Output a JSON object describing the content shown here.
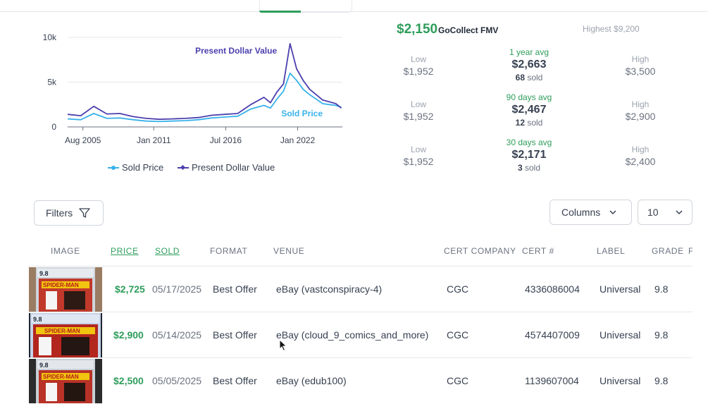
{
  "chart_data": {
    "type": "line",
    "x_tick_labels": [
      "Aug 2005",
      "Jan 2011",
      "Jul 2016",
      "Jan 2022"
    ],
    "y_tick_labels": [
      "10k",
      "5k",
      "0"
    ],
    "ylim": [
      0,
      10000
    ],
    "xlim": [
      "2004-06",
      "2025-06"
    ],
    "annotations": [
      "Present Dollar Value",
      "Sold Price"
    ],
    "grid": "horizontal",
    "legend_position": "bottom",
    "series": [
      {
        "name": "Sold Price",
        "color": "#38b2ea",
        "x": [
          "2004-06",
          "2005-06",
          "2006-06",
          "2007-06",
          "2008-06",
          "2009-06",
          "2010-06",
          "2011-06",
          "2012-06",
          "2013-06",
          "2014-06",
          "2015-06",
          "2016-06",
          "2017-06",
          "2018-06",
          "2019-06",
          "2019-12",
          "2020-06",
          "2020-12",
          "2021-06",
          "2021-12",
          "2022-06",
          "2022-12",
          "2023-06",
          "2023-12",
          "2024-06",
          "2024-12",
          "2025-05"
        ],
        "y": [
          900,
          800,
          1500,
          950,
          1000,
          800,
          650,
          600,
          650,
          700,
          800,
          1000,
          1100,
          1200,
          2000,
          2400,
          2100,
          3100,
          4000,
          6000,
          5200,
          4200,
          3600,
          3100,
          2600,
          2500,
          2400,
          2200
        ]
      },
      {
        "name": "Present Dollar Value",
        "color": "#4b3fae",
        "x": [
          "2004-06",
          "2005-06",
          "2006-06",
          "2007-06",
          "2008-06",
          "2009-06",
          "2010-06",
          "2011-06",
          "2012-06",
          "2013-06",
          "2014-06",
          "2015-06",
          "2016-06",
          "2017-06",
          "2018-06",
          "2019-06",
          "2019-12",
          "2020-06",
          "2020-12",
          "2021-06",
          "2021-12",
          "2022-06",
          "2022-12",
          "2023-06",
          "2023-12",
          "2024-06",
          "2024-12",
          "2025-05"
        ],
        "y": [
          1400,
          1250,
          2300,
          1450,
          1500,
          1150,
          950,
          850,
          900,
          950,
          1050,
          1300,
          1400,
          1500,
          2500,
          3300,
          2700,
          3900,
          4800,
          9300,
          6500,
          5200,
          4200,
          3600,
          3000,
          2800,
          2600,
          2100
        ]
      }
    ]
  },
  "fmv": {
    "price": "$2,150",
    "label": "GoCollect FMV",
    "highest": "Highest $9,200"
  },
  "stats": [
    {
      "low_label": "Low",
      "low": "$1,952",
      "avg_label": "1 year avg",
      "avg": "$2,663",
      "count": "68",
      "sold_word": "sold",
      "high_label": "High",
      "high": "$3,500"
    },
    {
      "low_label": "Low",
      "low": "$1,952",
      "avg_label": "90 days avg",
      "avg": "$2,467",
      "count": "12",
      "sold_word": "sold",
      "high_label": "High",
      "high": "$2,900"
    },
    {
      "low_label": "Low",
      "low": "$1,952",
      "avg_label": "30 days avg",
      "avg": "$2,171",
      "count": "3",
      "sold_word": "sold",
      "high_label": "High",
      "high": "$2,400"
    }
  ],
  "controls": {
    "filters": "Filters",
    "columns": "Columns",
    "per_page": "10"
  },
  "table": {
    "headers": [
      "IMAGE",
      "PRICE",
      "SOLD",
      "FORMAT",
      "VENUE",
      "CERT COMPANY",
      "CERT #",
      "LABEL",
      "GRADE",
      "F"
    ],
    "rows": [
      {
        "price": "$2,725",
        "sold": "05/17/2025",
        "format": "Best Offer",
        "venue": "eBay (vastconspiracy-4)",
        "cert_company": "CGC",
        "cert": "4336086004",
        "label": "Universal",
        "grade": "9.8",
        "slab_grade": "9.8",
        "comic_title": "SPIDER-MAN"
      },
      {
        "price": "$2,900",
        "sold": "05/14/2025",
        "format": "Best Offer",
        "venue": "eBay (cloud_9_comics_and_more)",
        "cert_company": "CGC",
        "cert": "4574407009",
        "label": "Universal",
        "grade": "9.8",
        "slab_grade": "9.8",
        "comic_title": "SPIDER-MAN"
      },
      {
        "price": "$2,500",
        "sold": "05/05/2025",
        "format": "Best Offer",
        "venue": "eBay (edub100)",
        "cert_company": "CGC",
        "cert": "1139607004",
        "label": "Universal",
        "grade": "9.8",
        "slab_grade": "9.8",
        "comic_title": "SPIDER-MAN"
      }
    ]
  }
}
